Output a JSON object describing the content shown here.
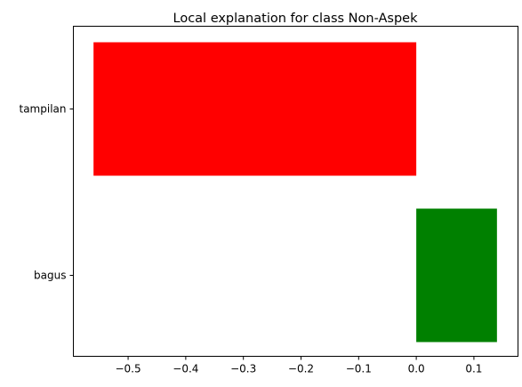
{
  "chart_data": {
    "type": "bar",
    "orientation": "horizontal",
    "title": "Local explanation for class Non-Aspek",
    "xlabel": "",
    "ylabel": "",
    "categories": [
      "tampilan",
      "bagus"
    ],
    "values": [
      -0.56,
      0.14
    ],
    "bar_colors": [
      "#ff0000",
      "#008000"
    ],
    "xlim": [
      -0.595,
      0.1765
    ],
    "xticks": [
      -0.5,
      -0.4,
      -0.3,
      -0.2,
      -0.1,
      0.0,
      0.1
    ],
    "xtick_labels": [
      "−0.5",
      "−0.4",
      "−0.3",
      "−0.2",
      "−0.1",
      "0.0",
      "0.1"
    ],
    "grid": false,
    "legend": "none"
  }
}
